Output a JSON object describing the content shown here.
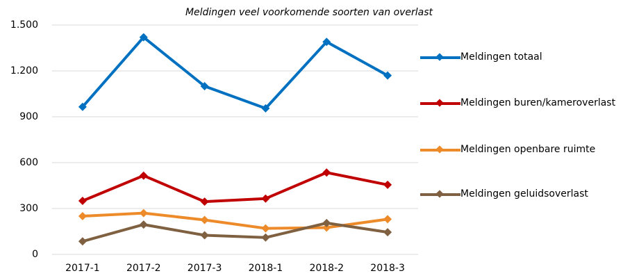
{
  "chart_data": {
    "type": "line",
    "title": "Meldingen veel voorkomende soorten van overlast",
    "categories": [
      "2017-1",
      "2017-2",
      "2017-3",
      "2018-1",
      "2018-2",
      "2018-3"
    ],
    "series": [
      {
        "name": "Meldingen totaal",
        "color": "#0070c0",
        "values": [
          965,
          1420,
          1100,
          955,
          1390,
          1170
        ]
      },
      {
        "name": "Meldingen buren/kameroverlast",
        "color": "#c00000",
        "values": [
          350,
          515,
          345,
          365,
          535,
          455
        ]
      },
      {
        "name": "Meldingen openbare ruimte",
        "color": "#ed8b2a",
        "values": [
          250,
          270,
          225,
          170,
          175,
          230
        ]
      },
      {
        "name": "Meldingen geluidsoverlast",
        "color": "#7f6040",
        "values": [
          85,
          195,
          125,
          110,
          205,
          145
        ]
      }
    ],
    "ylim": [
      0,
      1500
    ],
    "yticks": [
      0,
      300,
      600,
      900,
      {
        "value": 1200,
        "label": "1.200"
      },
      {
        "value": 1500,
        "label": "1.500"
      }
    ],
    "grid": true,
    "legend": "right"
  }
}
